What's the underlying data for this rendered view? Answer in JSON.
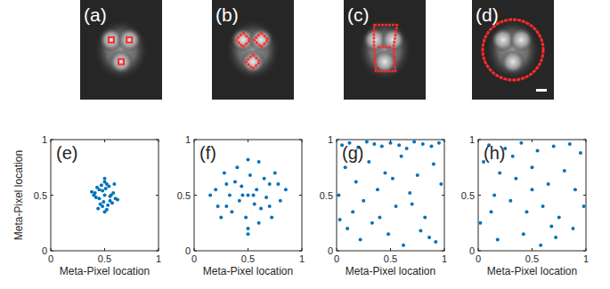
{
  "images": [
    {
      "label": "(a)"
    },
    {
      "label": "(b)"
    },
    {
      "label": "(c)"
    },
    {
      "label": "(d)"
    }
  ],
  "chart_data": [
    {
      "type": "scatter",
      "title": "(e)",
      "x_label": "Meta-Pixel location",
      "y_label": "Meta-Pixel location",
      "color": "#0072bd",
      "xlim": [
        0,
        1
      ],
      "ylim": [
        0,
        1
      ],
      "xticks": [
        0,
        0.5,
        1
      ],
      "yticks": [
        0,
        0.5,
        1
      ],
      "x": [
        0.5,
        0.45,
        0.55,
        0.42,
        0.58,
        0.48,
        0.52,
        0.4,
        0.6,
        0.46,
        0.54,
        0.5,
        0.44,
        0.56,
        0.38,
        0.62,
        0.49,
        0.51,
        0.47,
        0.53,
        0.43,
        0.57,
        0.5,
        0.41,
        0.59,
        0.45,
        0.55,
        0.5,
        0.48,
        0.52
      ],
      "y": [
        0.5,
        0.55,
        0.45,
        0.48,
        0.52,
        0.4,
        0.6,
        0.5,
        0.47,
        0.42,
        0.58,
        0.62,
        0.38,
        0.5,
        0.53,
        0.46,
        0.44,
        0.56,
        0.59,
        0.41,
        0.57,
        0.43,
        0.35,
        0.52,
        0.6,
        0.47,
        0.49,
        0.65,
        0.54,
        0.37
      ]
    },
    {
      "type": "scatter",
      "title": "(f)",
      "x_label": "Meta-Pixel location",
      "color": "#0072bd",
      "xlim": [
        0,
        1
      ],
      "ylim": [
        0,
        1
      ],
      "xticks": [
        0,
        0.5,
        1
      ],
      "yticks": [
        0,
        0.5,
        1
      ],
      "x": [
        0.5,
        0.3,
        0.7,
        0.2,
        0.8,
        0.4,
        0.6,
        0.35,
        0.65,
        0.25,
        0.75,
        0.45,
        0.55,
        0.15,
        0.85,
        0.5,
        0.3,
        0.7,
        0.42,
        0.58,
        0.38,
        0.62,
        0.5,
        0.28,
        0.72,
        0.48,
        0.52,
        0.33,
        0.67,
        0.5,
        0.22,
        0.78,
        0.44,
        0.56,
        0.6
      ],
      "y": [
        0.5,
        0.6,
        0.4,
        0.55,
        0.45,
        0.75,
        0.25,
        0.35,
        0.65,
        0.3,
        0.7,
        0.5,
        0.5,
        0.5,
        0.55,
        0.82,
        0.4,
        0.6,
        0.45,
        0.55,
        0.62,
        0.38,
        0.2,
        0.7,
        0.3,
        0.3,
        0.68,
        0.5,
        0.48,
        0.15,
        0.4,
        0.6,
        0.58,
        0.42,
        0.8
      ]
    },
    {
      "type": "scatter",
      "title": "(g)",
      "x_label": "Meta-Pixel location",
      "color": "#0072bd",
      "xlim": [
        0,
        1
      ],
      "ylim": [
        0,
        1
      ],
      "xticks": [
        0,
        0.5,
        1
      ],
      "yticks": [
        0,
        0.5,
        1
      ],
      "x": [
        0.05,
        0.12,
        0.2,
        0.28,
        0.35,
        0.42,
        0.5,
        0.58,
        0.65,
        0.72,
        0.8,
        0.88,
        0.95,
        0.08,
        0.18,
        0.3,
        0.45,
        0.6,
        0.75,
        0.9,
        0.02,
        0.15,
        0.25,
        0.38,
        0.55,
        0.68,
        0.82,
        0.97,
        0.1,
        0.22,
        0.33,
        0.48,
        0.62,
        0.78,
        0.92,
        0.4,
        0.52,
        0.7,
        0.86,
        0.03
      ],
      "y": [
        0.95,
        0.97,
        0.93,
        0.98,
        0.96,
        0.94,
        0.97,
        0.95,
        0.92,
        0.98,
        0.96,
        0.94,
        0.97,
        0.75,
        0.62,
        0.8,
        0.7,
        0.85,
        0.68,
        0.78,
        0.5,
        0.35,
        0.45,
        0.55,
        0.4,
        0.52,
        0.3,
        0.6,
        0.2,
        0.1,
        0.25,
        0.15,
        0.05,
        0.18,
        0.08,
        0.3,
        0.65,
        0.42,
        0.12,
        0.28
      ]
    },
    {
      "type": "scatter",
      "title": "(h)",
      "x_label": "Meta-Pixel location",
      "color": "#0072bd",
      "xlim": [
        0,
        1
      ],
      "ylim": [
        0,
        1
      ],
      "xticks": [
        0,
        0.5,
        1
      ],
      "yticks": [
        0,
        0.5,
        1
      ],
      "x": [
        0.1,
        0.25,
        0.4,
        0.55,
        0.7,
        0.85,
        0.95,
        0.05,
        0.2,
        0.35,
        0.5,
        0.65,
        0.8,
        0.9,
        0.15,
        0.3,
        0.45,
        0.6,
        0.75,
        0.88,
        0.02,
        0.18,
        0.42,
        0.58,
        0.72,
        0.98,
        0.32,
        0.5,
        0.68,
        0.12
      ],
      "y": [
        0.95,
        0.92,
        0.97,
        0.9,
        0.94,
        0.96,
        0.88,
        0.8,
        0.7,
        0.65,
        0.75,
        0.6,
        0.72,
        0.55,
        0.5,
        0.45,
        0.35,
        0.4,
        0.3,
        0.2,
        0.25,
        0.1,
        0.15,
        0.05,
        0.12,
        0.4,
        0.85,
        0.55,
        0.22,
        0.35
      ]
    }
  ]
}
